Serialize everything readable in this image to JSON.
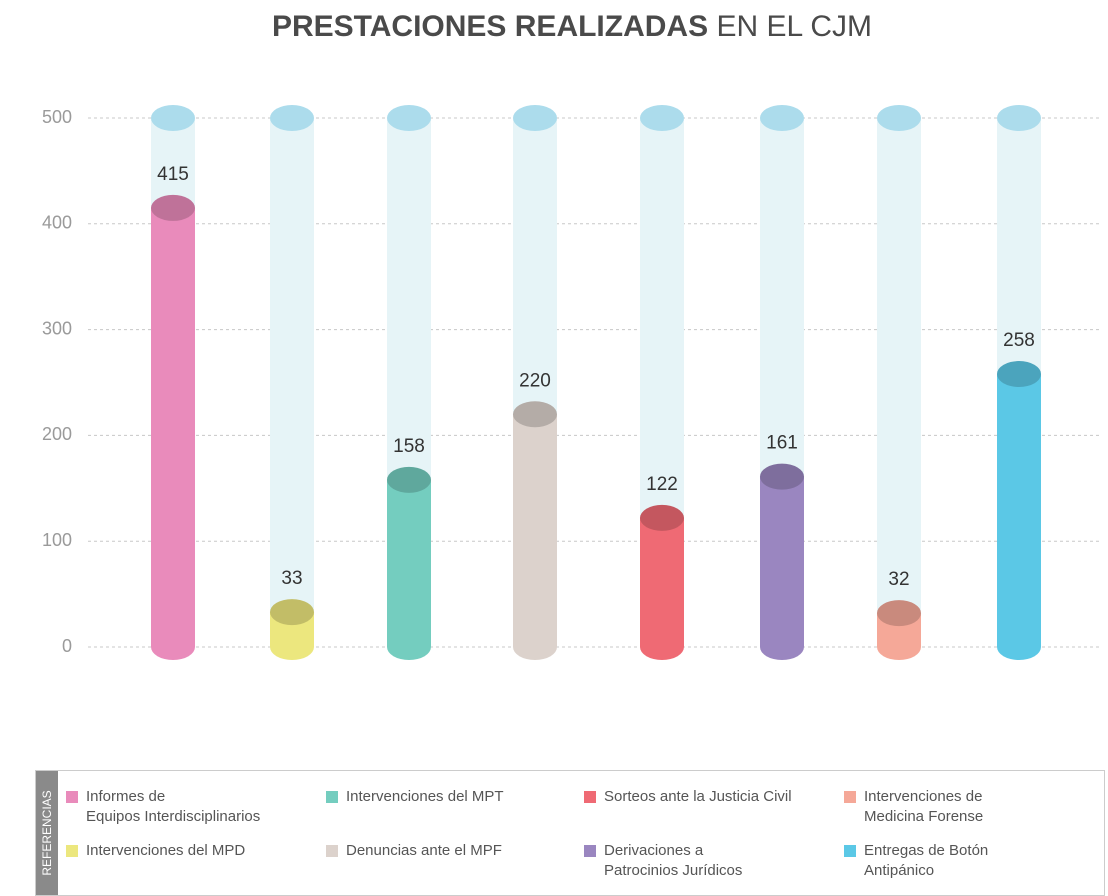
{
  "chart_data": {
    "type": "cylinder-bar",
    "title_parts": [
      "PRESTACIONES REALIZADAS",
      "EN EL CJM"
    ],
    "legend_title": "REFERENCIAS",
    "categories": [
      "Informes de\nEquipos Interdisciplinarios",
      "Intervenciones del MPD",
      "Intervenciones del MPT",
      "Denuncias ante el MPF",
      "Sorteos ante la Justicia Civil",
      "Derivaciones a\nPatrocinios Jurídicos",
      "Intervenciones de\nMedicina Forense",
      "Entregas de Botón\nAntipánico"
    ],
    "values": [
      415,
      33,
      158,
      220,
      122,
      161,
      32,
      258
    ],
    "colors": [
      "#e98bbb",
      "#ece77e",
      "#74cdbf",
      "#dcd2cc",
      "#ef6a74",
      "#9a86c0",
      "#f5a898",
      "#5bc8e6"
    ],
    "ylim": [
      0,
      500
    ],
    "yticks": [
      0,
      100,
      200,
      300,
      400,
      500
    ],
    "grid": true
  }
}
